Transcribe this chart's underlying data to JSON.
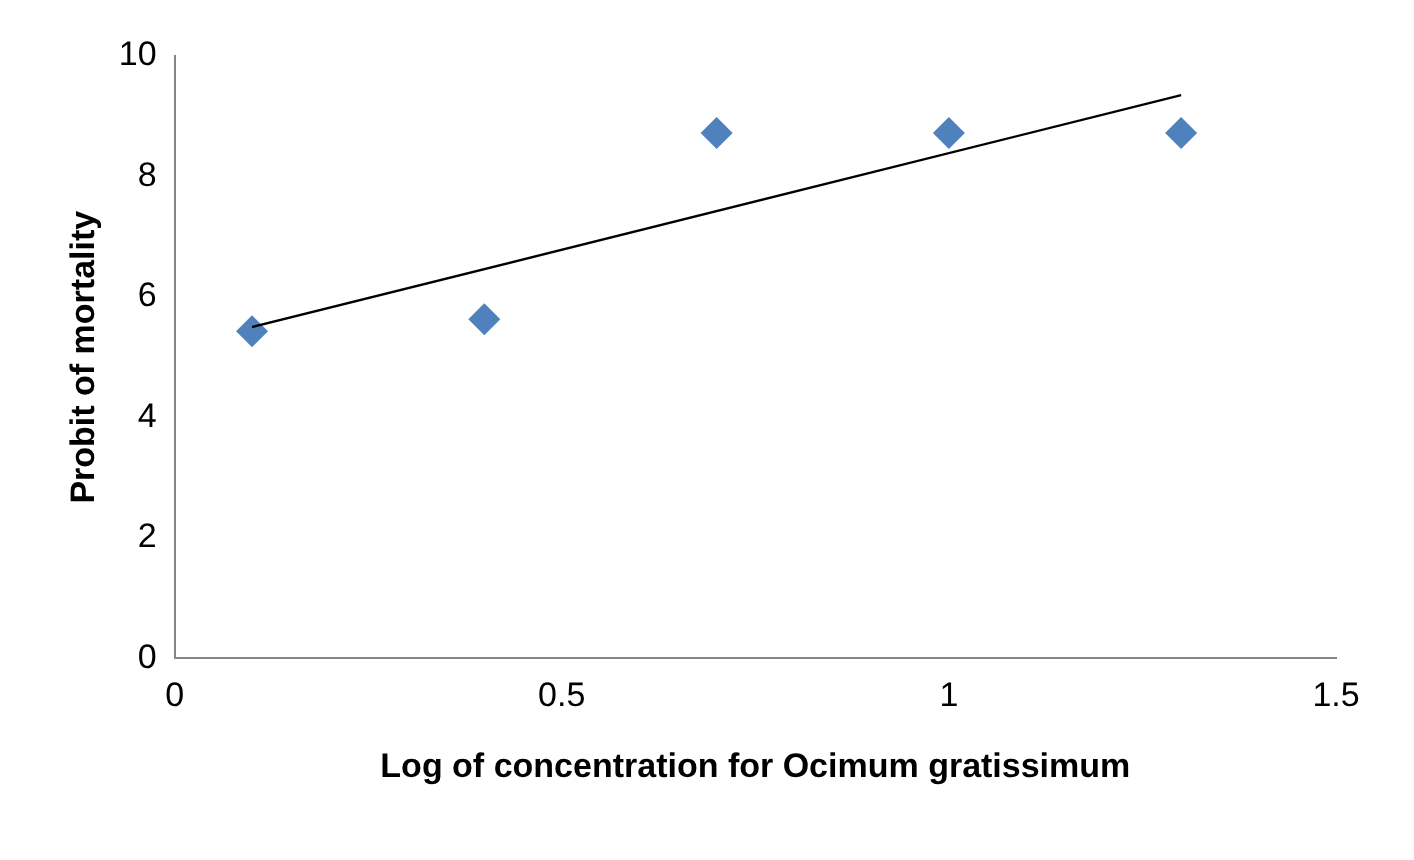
{
  "chart_data": {
    "type": "scatter",
    "xlabel": "Log of concentration for Ocimum gratissimum",
    "ylabel": "Probit of mortality",
    "xlim": [
      0,
      1.5
    ],
    "xticks": [
      0,
      0.5,
      1,
      1.5
    ],
    "ylim": [
      0,
      10
    ],
    "yticks": [
      0,
      2,
      4,
      6,
      8,
      10
    ],
    "grid": false,
    "legend": false,
    "marker": "diamond",
    "series": [
      {
        "color": "#4f81bd",
        "x": [
          0.1,
          0.4,
          0.7,
          1.0,
          1.3
        ],
        "values": [
          5.43,
          5.63,
          8.72,
          8.72,
          8.72
        ]
      },
      {
        "type": "line",
        "color": "#000000",
        "x": [
          0.1,
          1.3
        ],
        "values": [
          5.5,
          9.35
        ],
        "marker": "none",
        "line_style": "solid"
      }
    ]
  }
}
